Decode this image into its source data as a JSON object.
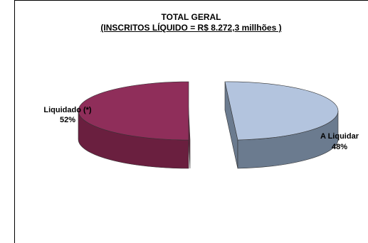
{
  "chart_data": {
    "type": "pie",
    "title": "TOTAL GERAL",
    "subtitle": "(INSCRITOS LÍQUIDO = R$ 8.272,3 millhões )",
    "slices": [
      {
        "label": "A Liquidar",
        "value": 48,
        "value_label": "48%",
        "color": "#b3c4de",
        "side_color": "#6b7b8f"
      },
      {
        "label": "Liquidado (*)",
        "value": 52,
        "value_label": "52%",
        "color": "#8f2e5a",
        "side_color": "#6a1f3f"
      }
    ],
    "style": "3d-exploded"
  }
}
